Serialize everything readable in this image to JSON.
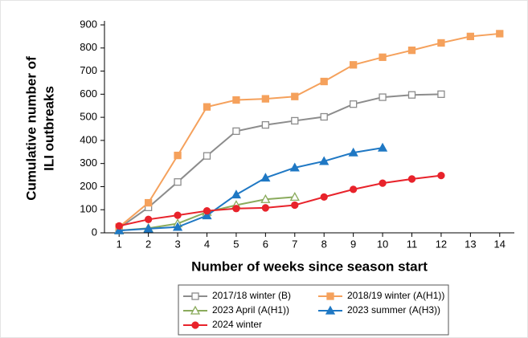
{
  "chart_data": {
    "type": "line",
    "xlabel": "Number of weeks since season start",
    "ylabel": [
      "Cumulative number of",
      "ILI outbreaks"
    ],
    "xlim": [
      0.5,
      14.5
    ],
    "xticks": [
      1,
      2,
      3,
      4,
      5,
      6,
      7,
      8,
      9,
      10,
      11,
      12,
      13,
      14
    ],
    "ylim": [
      0,
      900
    ],
    "yticks": [
      0,
      100,
      200,
      300,
      400,
      500,
      600,
      700,
      800,
      900
    ],
    "grid": false,
    "legend": "bottom",
    "series": [
      {
        "name": "2017/18 winter (B)",
        "color": "#8c8c8c",
        "marker": "square-open",
        "x": [
          1,
          2,
          3,
          4,
          5,
          6,
          7,
          8,
          9,
          10,
          11,
          12
        ],
        "values": [
          20,
          110,
          220,
          333,
          440,
          467,
          485,
          502,
          557,
          587,
          597,
          600
        ]
      },
      {
        "name": "2018/19 winter (A(H1))",
        "color": "#f5a15c",
        "marker": "square",
        "x": [
          1,
          2,
          3,
          4,
          5,
          6,
          7,
          8,
          9,
          10,
          11,
          12,
          13,
          14
        ],
        "values": [
          25,
          130,
          335,
          545,
          575,
          580,
          590,
          655,
          727,
          760,
          790,
          822,
          850,
          862
        ]
      },
      {
        "name": "2023 April (A(H1))",
        "color": "#8aab5c",
        "marker": "triangle-open",
        "x": [
          1,
          2,
          3,
          4,
          5,
          6,
          7
        ],
        "values": [
          10,
          20,
          40,
          90,
          120,
          145,
          155
        ]
      },
      {
        "name": "2023 summer (A(H3))",
        "color": "#1f78c4",
        "marker": "triangle",
        "x": [
          1,
          2,
          3,
          4,
          5,
          6,
          7,
          8,
          9,
          10
        ],
        "values": [
          10,
          18,
          25,
          75,
          165,
          238,
          282,
          310,
          347,
          368
        ]
      },
      {
        "name": "2024 winter",
        "color": "#e8232b",
        "marker": "circle",
        "x": [
          1,
          2,
          3,
          4,
          5,
          6,
          7,
          8,
          9,
          10,
          11,
          12
        ],
        "values": [
          30,
          58,
          76,
          95,
          105,
          108,
          120,
          155,
          188,
          215,
          233,
          248
        ]
      }
    ]
  }
}
